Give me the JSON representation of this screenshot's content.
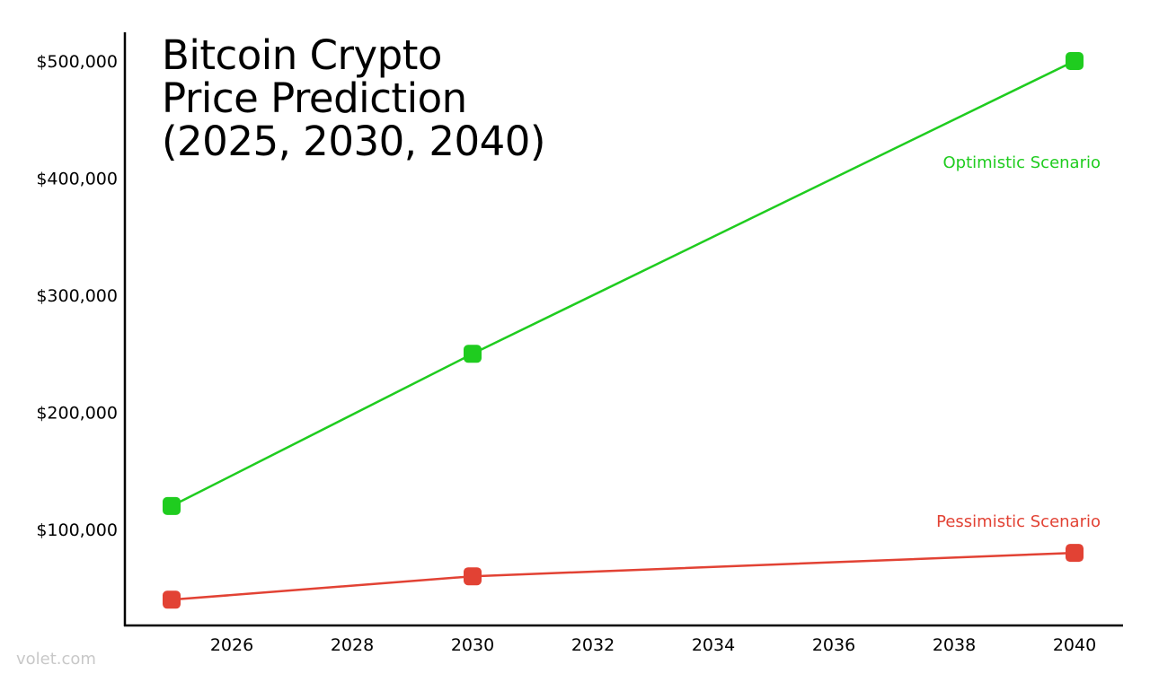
{
  "chart_data": {
    "type": "line",
    "title": "Bitcoin Crypto Price Prediction (2025, 2030, 2040)",
    "title_lines": [
      "Bitcoin Crypto",
      "Price Prediction",
      "(2025, 2030, 2040)"
    ],
    "xlabel": "",
    "ylabel": "",
    "x": [
      2025,
      2030,
      2040
    ],
    "xlim": [
      2024.0,
      2040.8
    ],
    "ylim": [
      -18000,
      525000
    ],
    "x_ticks": [
      2026,
      2028,
      2030,
      2032,
      2034,
      2036,
      2038,
      2040
    ],
    "y_ticks": [
      100000,
      200000,
      300000,
      400000,
      500000
    ],
    "y_tick_labels": [
      "$100,000",
      "$200,000",
      "$300,000",
      "$400,000",
      "$500,000"
    ],
    "grid": false,
    "legend_position": "inline labels at right",
    "series": [
      {
        "name": "Optimistic Scenario",
        "color": "#1fcc1f",
        "values": [
          120000,
          250000,
          500000
        ]
      },
      {
        "name": "Pessimistic Scenario",
        "color": "#e24234",
        "values": [
          40000,
          60000,
          80000
        ]
      }
    ],
    "annotations": [
      {
        "text": "Optimistic Scenario",
        "color": "#1fcc1f"
      },
      {
        "text": "Pessimistic Scenario",
        "color": "#e24234"
      }
    ]
  },
  "watermark": "volet.com"
}
